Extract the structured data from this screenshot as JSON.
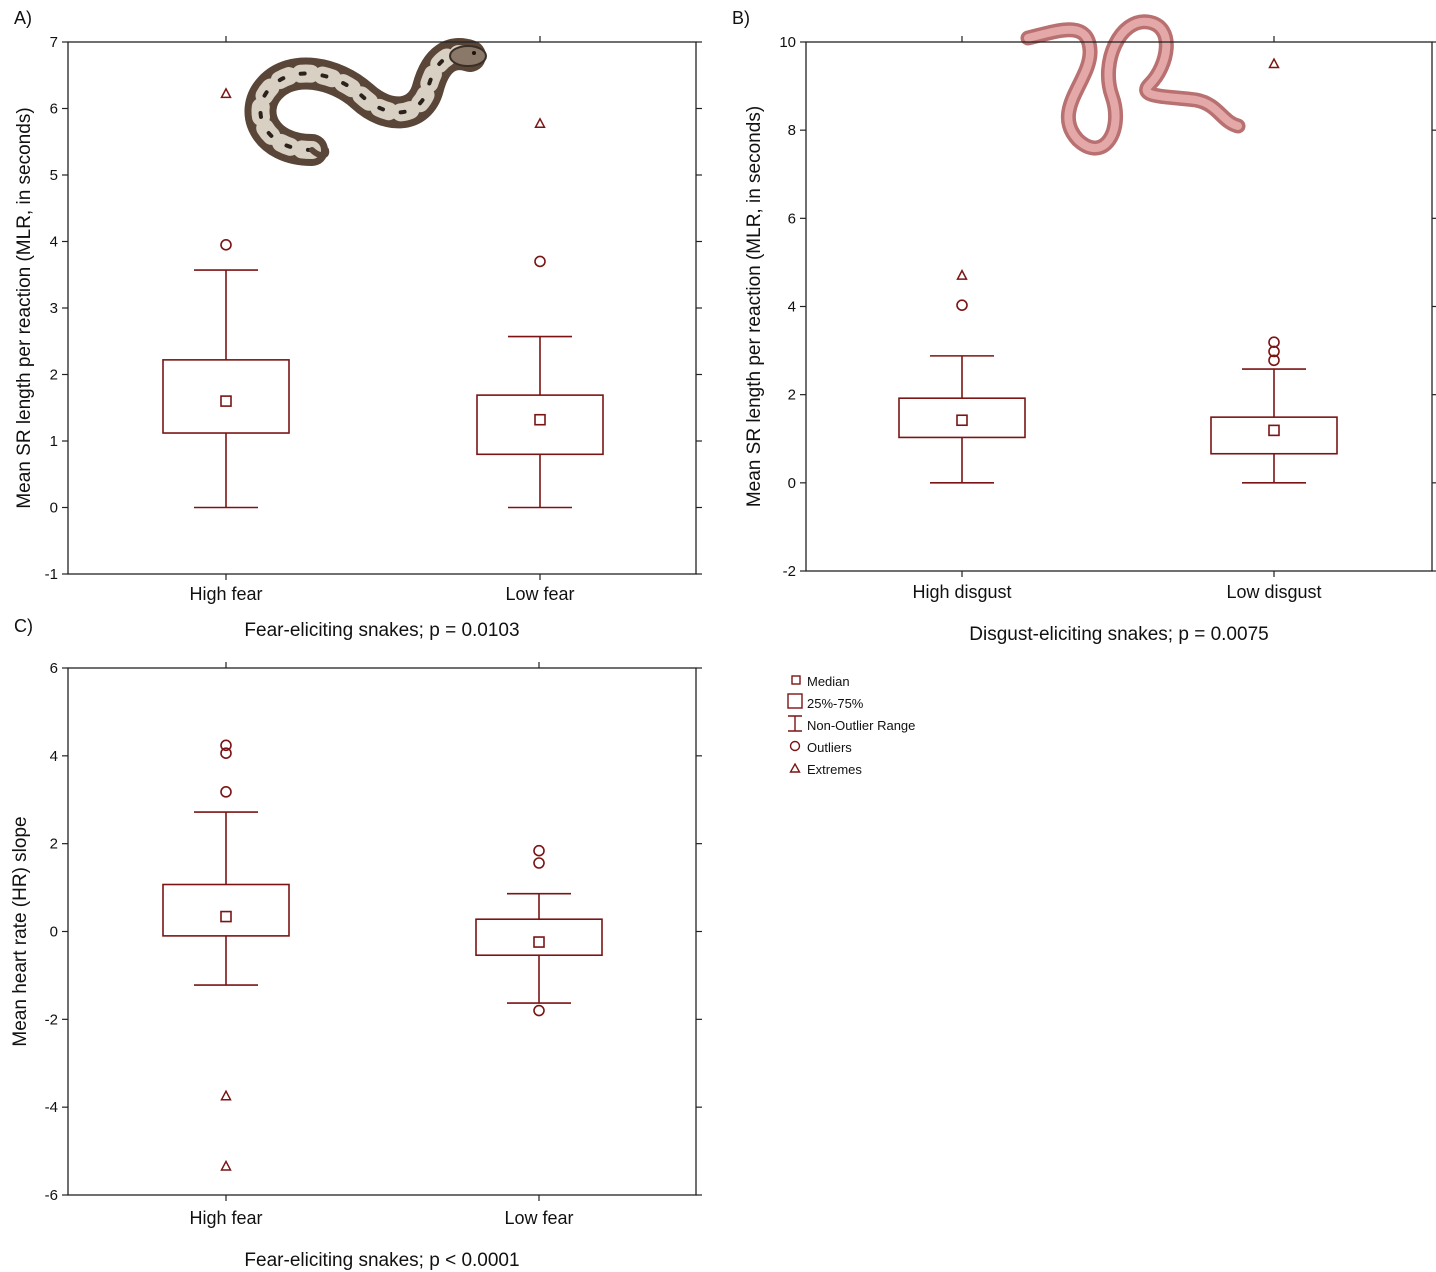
{
  "mark_color": "#7b1414",
  "chart_data": [
    {
      "type": "boxplot",
      "panel_label": "A)",
      "xlabel": "Fear-eliciting snakes; p = 0.0103",
      "ylabel": "Mean SR length per reaction (MLR, in seconds)",
      "ylim": [
        -1,
        7
      ],
      "yticks": [
        "-1",
        "0",
        "1",
        "2",
        "3",
        "4",
        "5",
        "6",
        "7"
      ],
      "illustration": "viper-snake-image",
      "categories": [
        "High fear",
        "Low fear"
      ],
      "boxes": [
        {
          "category": "High fear",
          "median": 1.6,
          "q1": 1.12,
          "q3": 2.22,
          "whisker_low": 0,
          "whisker_high": 3.57,
          "outliers": [
            3.95
          ],
          "extremes": [
            6.22
          ]
        },
        {
          "category": "Low fear",
          "median": 1.32,
          "q1": 0.8,
          "q3": 1.69,
          "whisker_low": 0,
          "whisker_high": 2.57,
          "outliers": [
            3.7
          ],
          "extremes": [
            5.77
          ]
        }
      ]
    },
    {
      "type": "boxplot",
      "panel_label": "B)",
      "xlabel": "Disgust-eliciting snakes; p = 0.0075",
      "ylabel": "Mean SR length per reaction (MLR, in seconds)",
      "ylim": [
        -2,
        10
      ],
      "yticks": [
        "-2",
        "0",
        "2",
        "4",
        "6",
        "8",
        "10"
      ],
      "illustration": "blind-snake-image",
      "categories": [
        "High disgust",
        "Low disgust"
      ],
      "boxes": [
        {
          "category": "High disgust",
          "median": 1.42,
          "q1": 1.03,
          "q3": 1.92,
          "whisker_low": 0,
          "whisker_high": 2.88,
          "outliers": [
            4.03
          ],
          "extremes": [
            4.7
          ]
        },
        {
          "category": "Low disgust",
          "median": 1.19,
          "q1": 0.66,
          "q3": 1.49,
          "whisker_low": 0,
          "whisker_high": 2.58,
          "outliers": [
            2.78,
            2.98,
            3.19
          ],
          "extremes": [
            9.5
          ]
        }
      ]
    },
    {
      "type": "boxplot",
      "panel_label": "C)",
      "xlabel": "Fear-eliciting snakes; p < 0.0001",
      "ylabel": "Mean heart rate (HR) slope",
      "ylim": [
        -6,
        6
      ],
      "yticks": [
        "-6",
        "-4",
        "-2",
        "0",
        "2",
        "4",
        "6"
      ],
      "categories": [
        "High fear",
        "Low fear"
      ],
      "boxes": [
        {
          "category": "High fear",
          "median": 0.34,
          "q1": -0.1,
          "q3": 1.07,
          "whisker_low": -1.22,
          "whisker_high": 2.72,
          "outliers": [
            3.18,
            4.06,
            4.24
          ],
          "extremes": [
            -3.75,
            -5.35
          ]
        },
        {
          "category": "Low fear",
          "median": -0.24,
          "q1": -0.54,
          "q3": 0.28,
          "whisker_low": -1.63,
          "whisker_high": 0.86,
          "outliers": [
            1.56,
            1.84,
            -1.8
          ],
          "extremes": []
        }
      ]
    }
  ],
  "legend": {
    "placement": "right of panel C",
    "items": [
      {
        "key": "median",
        "label": "Median"
      },
      {
        "key": "box",
        "label": "25%-75%"
      },
      {
        "key": "whisker",
        "label": "Non-Outlier Range"
      },
      {
        "key": "outlier",
        "label": "Outliers"
      },
      {
        "key": "extreme",
        "label": "Extremes"
      }
    ]
  }
}
